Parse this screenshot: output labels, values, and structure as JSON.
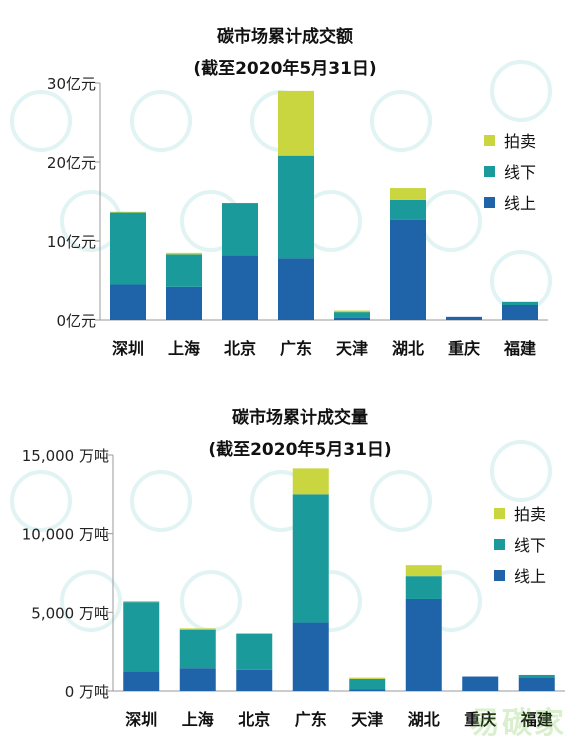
{
  "chart_data": [
    {
      "type": "bar",
      "stacked": true,
      "title": "碳市场累计成交额",
      "subtitle": "(截至2020年5月31日)",
      "categories": [
        "深圳",
        "上海",
        "北京",
        "广东",
        "天津",
        "湖北",
        "重庆",
        "福建"
      ],
      "series": [
        {
          "name": "线上",
          "color": "#1f63a8",
          "values": [
            4.5,
            4.2,
            8.2,
            7.8,
            0.3,
            12.7,
            0.4,
            1.9
          ]
        },
        {
          "name": "线下",
          "color": "#1a9a9a",
          "values": [
            9.1,
            4.1,
            6.6,
            13.0,
            0.7,
            2.5,
            0.0,
            0.4
          ]
        },
        {
          "name": "拍卖",
          "color": "#c9d63f",
          "values": [
            0.1,
            0.2,
            0.0,
            8.2,
            0.2,
            1.5,
            0.0,
            0.0
          ]
        }
      ],
      "ylim": [
        0,
        30
      ],
      "yticks": [
        "0亿元",
        "10亿元",
        "20亿元",
        "30亿元"
      ],
      "ytick_values": [
        0,
        10,
        20,
        30
      ],
      "legend_position": "right"
    },
    {
      "type": "bar",
      "stacked": true,
      "title": "碳市场累计成交量",
      "subtitle": "(截至2020年5月31日)",
      "categories": [
        "深圳",
        "上海",
        "北京",
        "广东",
        "天津",
        "湖北",
        "重庆",
        "福建"
      ],
      "series": [
        {
          "name": "线上",
          "color": "#1f63a8",
          "values": [
            1250,
            1450,
            1350,
            4350,
            120,
            5850,
            920,
            870
          ]
        },
        {
          "name": "线下",
          "color": "#1a9a9a",
          "values": [
            4400,
            2450,
            2300,
            8150,
            650,
            1450,
            0,
            150
          ]
        },
        {
          "name": "拍卖",
          "color": "#c9d63f",
          "values": [
            70,
            80,
            0,
            1650,
            80,
            700,
            0,
            0
          ]
        }
      ],
      "ylim": [
        0,
        15000
      ],
      "yticks": [
        "0 万吨",
        "5,000 万吨",
        "10,000 万吨",
        "15,000 万吨"
      ],
      "ytick_values": [
        0,
        5000,
        10000,
        15000
      ],
      "legend_position": "right"
    }
  ],
  "watermark": {
    "logo_text": "易碳家"
  }
}
